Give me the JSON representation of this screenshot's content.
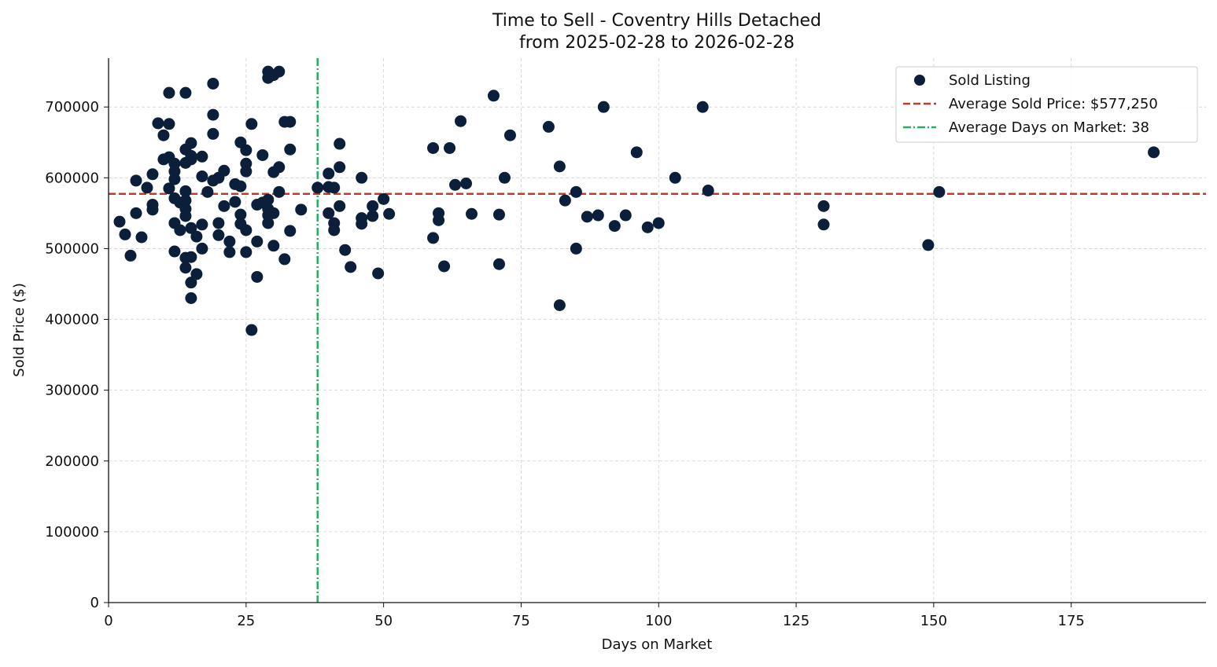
{
  "chart_data": {
    "type": "scatter",
    "title": "Time to Sell - Coventry Hills Detached",
    "subtitle": "from 2025-02-28 to 2026-02-28",
    "xlabel": "Days on Market",
    "ylabel": "Sold Price ($)",
    "xlim": [
      0,
      199.5
    ],
    "ylim": [
      0,
      769000
    ],
    "xticks": [
      0,
      25,
      50,
      75,
      100,
      125,
      150,
      175
    ],
    "yticks": [
      0,
      100000,
      200000,
      300000,
      400000,
      500000,
      600000,
      700000
    ],
    "grid": true,
    "legend_position": "top-right",
    "colors": {
      "points": "#0b1f3a",
      "avg_price": "#c0392b",
      "avg_days": "#27ae60",
      "grid": "#d0d0d0"
    },
    "legend": [
      {
        "label": "Sold Listing",
        "kind": "marker"
      },
      {
        "label": "Average Sold Price: $577,250",
        "kind": "dashed"
      },
      {
        "label": "Average Days on Market: 38",
        "kind": "dashdot"
      }
    ],
    "average_sold_price": 577250,
    "average_days_on_market": 38,
    "series": [
      {
        "name": "Sold Listing",
        "points": [
          [
            2,
            538000
          ],
          [
            3,
            520000
          ],
          [
            4,
            490000
          ],
          [
            5,
            550000
          ],
          [
            5,
            596000
          ],
          [
            6,
            516000
          ],
          [
            7,
            586000
          ],
          [
            8,
            605000
          ],
          [
            8,
            562000
          ],
          [
            8,
            555000
          ],
          [
            9,
            677000
          ],
          [
            10,
            660000
          ],
          [
            10,
            626000
          ],
          [
            11,
            720000
          ],
          [
            11,
            676000
          ],
          [
            11,
            629000
          ],
          [
            11,
            585000
          ],
          [
            12,
            620000
          ],
          [
            12,
            609000
          ],
          [
            12,
            598000
          ],
          [
            12,
            571000
          ],
          [
            12,
            536000
          ],
          [
            12,
            496000
          ],
          [
            13,
            565000
          ],
          [
            13,
            526000
          ],
          [
            14,
            720000
          ],
          [
            14,
            640000
          ],
          [
            14,
            621000
          ],
          [
            14,
            581000
          ],
          [
            14,
            568000
          ],
          [
            14,
            556000
          ],
          [
            14,
            546000
          ],
          [
            14,
            487000
          ],
          [
            14,
            473000
          ],
          [
            15,
            649000
          ],
          [
            15,
            626000
          ],
          [
            15,
            631000
          ],
          [
            15,
            529000
          ],
          [
            15,
            488000
          ],
          [
            15,
            452000
          ],
          [
            15,
            430000
          ],
          [
            16,
            517000
          ],
          [
            16,
            464000
          ],
          [
            17,
            630000
          ],
          [
            17,
            602000
          ],
          [
            17,
            534000
          ],
          [
            17,
            500000
          ],
          [
            18,
            580000
          ],
          [
            19,
            733000
          ],
          [
            19,
            689000
          ],
          [
            19,
            662000
          ],
          [
            19,
            596000
          ],
          [
            20,
            600000
          ],
          [
            20,
            536000
          ],
          [
            20,
            519000
          ],
          [
            21,
            610000
          ],
          [
            21,
            560000
          ],
          [
            22,
            510000
          ],
          [
            22,
            495000
          ],
          [
            23,
            566000
          ],
          [
            23,
            591000
          ],
          [
            24,
            588000
          ],
          [
            24,
            650000
          ],
          [
            24,
            548000
          ],
          [
            24,
            535000
          ],
          [
            25,
            639000
          ],
          [
            25,
            620000
          ],
          [
            25,
            609000
          ],
          [
            25,
            526000
          ],
          [
            25,
            495000
          ],
          [
            26,
            676000
          ],
          [
            26,
            385000
          ],
          [
            27,
            562000
          ],
          [
            27,
            510000
          ],
          [
            27,
            460000
          ],
          [
            28,
            632000
          ],
          [
            28,
            565000
          ],
          [
            29,
            750000
          ],
          [
            29,
            741000
          ],
          [
            29,
            569000
          ],
          [
            29,
            556000
          ],
          [
            29,
            547000
          ],
          [
            29,
            536000
          ],
          [
            30,
            745000
          ],
          [
            30,
            608000
          ],
          [
            30,
            550000
          ],
          [
            30,
            504000
          ],
          [
            31,
            750000
          ],
          [
            31,
            615000
          ],
          [
            31,
            580000
          ],
          [
            32,
            485000
          ],
          [
            32,
            679000
          ],
          [
            33,
            679000
          ],
          [
            33,
            640000
          ],
          [
            33,
            525000
          ],
          [
            35,
            555000
          ],
          [
            38,
            586000
          ],
          [
            40,
            606000
          ],
          [
            40,
            587000
          ],
          [
            40,
            550000
          ],
          [
            41,
            586000
          ],
          [
            41,
            536000
          ],
          [
            41,
            526000
          ],
          [
            42,
            648000
          ],
          [
            42,
            615000
          ],
          [
            42,
            560000
          ],
          [
            43,
            498000
          ],
          [
            44,
            474000
          ],
          [
            46,
            600000
          ],
          [
            46,
            543000
          ],
          [
            46,
            535000
          ],
          [
            48,
            560000
          ],
          [
            48,
            546000
          ],
          [
            49,
            465000
          ],
          [
            50,
            570000
          ],
          [
            51,
            549000
          ],
          [
            59,
            642000
          ],
          [
            59,
            515000
          ],
          [
            60,
            550000
          ],
          [
            60,
            540000
          ],
          [
            61,
            475000
          ],
          [
            62,
            642000
          ],
          [
            63,
            590000
          ],
          [
            64,
            680000
          ],
          [
            65,
            592000
          ],
          [
            66,
            549000
          ],
          [
            70,
            716000
          ],
          [
            71,
            548000
          ],
          [
            71,
            478000
          ],
          [
            72,
            600000
          ],
          [
            73,
            660000
          ],
          [
            80,
            672000
          ],
          [
            82,
            616000
          ],
          [
            82,
            420000
          ],
          [
            83,
            568000
          ],
          [
            85,
            580000
          ],
          [
            85,
            500000
          ],
          [
            87,
            545000
          ],
          [
            89,
            547000
          ],
          [
            90,
            700000
          ],
          [
            92,
            532000
          ],
          [
            94,
            547000
          ],
          [
            96,
            636000
          ],
          [
            98,
            530000
          ],
          [
            100,
            536000
          ],
          [
            103,
            600000
          ],
          [
            108,
            700000
          ],
          [
            109,
            582000
          ],
          [
            130,
            560000
          ],
          [
            130,
            534000
          ],
          [
            149,
            505000
          ],
          [
            151,
            580000
          ],
          [
            190,
            636000
          ]
        ]
      }
    ]
  }
}
